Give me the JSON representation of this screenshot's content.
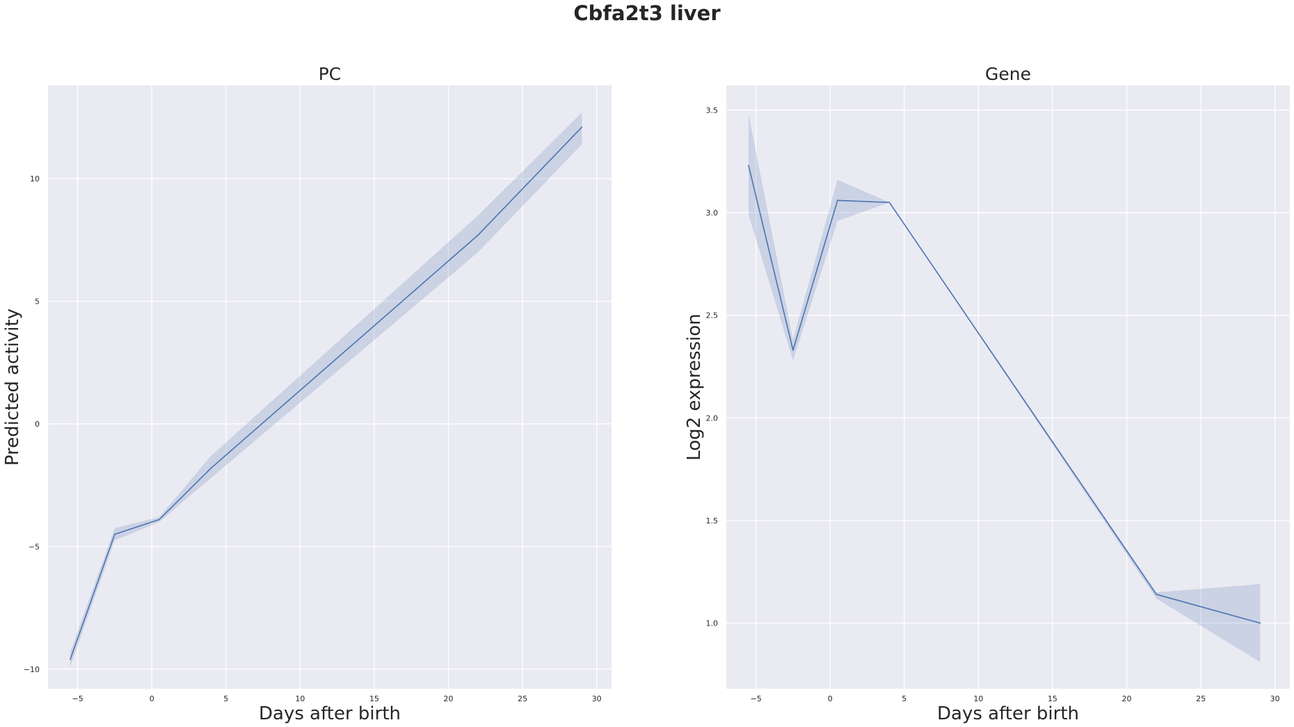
{
  "figure": {
    "title": "Cbfa2t3 liver"
  },
  "chart_data": [
    {
      "type": "line",
      "title": "PC",
      "xlabel": "Days after birth",
      "ylabel": "Predicted activity",
      "xlim": [
        -7,
        31
      ],
      "ylim": [
        -10.8,
        13.8
      ],
      "xticks": [
        -5,
        0,
        5,
        10,
        15,
        20,
        25,
        30
      ],
      "xtick_labels": [
        "−5",
        "0",
        "5",
        "10",
        "15",
        "20",
        "25",
        "30"
      ],
      "yticks": [
        -10,
        -5,
        0,
        5,
        10
      ],
      "ytick_labels": [
        "−10",
        "−5",
        "0",
        "5",
        "10"
      ],
      "grid": true,
      "color": "#4c72b0",
      "series": [
        {
          "name": "PC",
          "x": [
            -5.5,
            -2.5,
            0.5,
            4,
            22,
            29
          ],
          "y": [
            -9.6,
            -4.5,
            -3.9,
            -1.8,
            7.7,
            12.1
          ],
          "ci_low": [
            -9.9,
            -4.75,
            -4.0,
            -2.2,
            7.0,
            11.4
          ],
          "ci_high": [
            -9.3,
            -4.25,
            -3.8,
            -1.3,
            8.5,
            12.7
          ]
        }
      ]
    },
    {
      "type": "line",
      "title": "Gene",
      "xlabel": "Days after birth",
      "ylabel": "Log2 expression",
      "xlim": [
        -7,
        31
      ],
      "ylim": [
        0.68,
        3.62
      ],
      "xticks": [
        -5,
        0,
        5,
        10,
        15,
        20,
        25,
        30
      ],
      "xtick_labels": [
        "−5",
        "0",
        "5",
        "10",
        "15",
        "20",
        "25",
        "30"
      ],
      "yticks": [
        1.0,
        1.5,
        2.0,
        2.5,
        3.0,
        3.5
      ],
      "ytick_labels": [
        "1.0",
        "1.5",
        "2.0",
        "2.5",
        "3.0",
        "3.5"
      ],
      "grid": true,
      "color": "#4c72b0",
      "series": [
        {
          "name": "Gene",
          "x": [
            -5.5,
            -2.5,
            0.5,
            4,
            22,
            29
          ],
          "y": [
            3.23,
            2.33,
            3.06,
            3.05,
            1.14,
            1.0
          ],
          "ci_low": [
            2.99,
            2.28,
            2.96,
            3.05,
            1.12,
            0.81
          ],
          "ci_high": [
            3.48,
            2.38,
            3.16,
            3.05,
            1.15,
            1.19
          ]
        }
      ]
    }
  ]
}
